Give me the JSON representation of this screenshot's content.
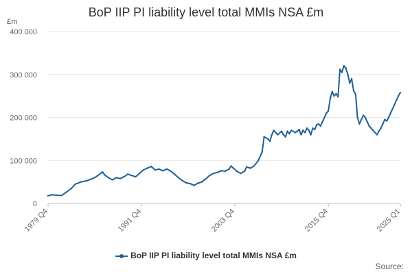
{
  "chart_data": {
    "type": "line",
    "title": "BoP IIP PI liability level total MMIs NSA £m",
    "ylabel": "£m",
    "xlabel": "",
    "ylim": [
      0,
      400000
    ],
    "y_ticks": [
      {
        "value": 0,
        "label": "0"
      },
      {
        "value": 100000,
        "label": "100 000"
      },
      {
        "value": 200000,
        "label": "200 000"
      },
      {
        "value": 300000,
        "label": "300 000"
      },
      {
        "value": 400000,
        "label": "400 000"
      }
    ],
    "x_start": 1979.75,
    "x_end": 2025.0,
    "x_ticks": [
      {
        "value": 1979.75,
        "label": "1979 Q4"
      },
      {
        "value": 1991.75,
        "label": "1991 Q4"
      },
      {
        "value": 2003.75,
        "label": "2003 Q4"
      },
      {
        "value": 2015.75,
        "label": "2015 Q4"
      },
      {
        "value": 2025.0,
        "label": "2025 Q1"
      }
    ],
    "grid": true,
    "series": [
      {
        "name": "BoP IIP PI liability level total MMIs NSA £m",
        "color": "#206095",
        "points": [
          [
            1979.75,
            18000
          ],
          [
            1980.25,
            20000
          ],
          [
            1981.0,
            19000
          ],
          [
            1981.5,
            18500
          ],
          [
            1982.0,
            25000
          ],
          [
            1982.75,
            35000
          ],
          [
            1983.25,
            45000
          ],
          [
            1984.0,
            50000
          ],
          [
            1984.75,
            53000
          ],
          [
            1985.5,
            58000
          ],
          [
            1986.0,
            63000
          ],
          [
            1986.5,
            70000
          ],
          [
            1986.75,
            73000
          ],
          [
            1987.0,
            67000
          ],
          [
            1987.5,
            60000
          ],
          [
            1988.0,
            55000
          ],
          [
            1988.5,
            60000
          ],
          [
            1989.0,
            58000
          ],
          [
            1989.5,
            62000
          ],
          [
            1990.0,
            68000
          ],
          [
            1990.5,
            65000
          ],
          [
            1991.0,
            62000
          ],
          [
            1991.5,
            70000
          ],
          [
            1992.0,
            78000
          ],
          [
            1992.5,
            82000
          ],
          [
            1993.0,
            86000
          ],
          [
            1993.5,
            78000
          ],
          [
            1994.0,
            80000
          ],
          [
            1994.5,
            76000
          ],
          [
            1995.0,
            80000
          ],
          [
            1995.5,
            75000
          ],
          [
            1996.0,
            68000
          ],
          [
            1996.5,
            60000
          ],
          [
            1997.0,
            53000
          ],
          [
            1997.5,
            48000
          ],
          [
            1998.0,
            46000
          ],
          [
            1998.5,
            42000
          ],
          [
            1999.0,
            47000
          ],
          [
            1999.5,
            50000
          ],
          [
            2000.0,
            57000
          ],
          [
            2000.5,
            65000
          ],
          [
            2001.0,
            70000
          ],
          [
            2001.5,
            72000
          ],
          [
            2002.0,
            76000
          ],
          [
            2002.5,
            75000
          ],
          [
            2003.0,
            80000
          ],
          [
            2003.25,
            87000
          ],
          [
            2003.5,
            83000
          ],
          [
            2004.0,
            75000
          ],
          [
            2004.5,
            70000
          ],
          [
            2005.0,
            75000
          ],
          [
            2005.25,
            85000
          ],
          [
            2005.75,
            82000
          ],
          [
            2006.25,
            88000
          ],
          [
            2006.75,
            100000
          ],
          [
            2007.25,
            120000
          ],
          [
            2007.5,
            155000
          ],
          [
            2008.0,
            150000
          ],
          [
            2008.25,
            145000
          ],
          [
            2008.5,
            160000
          ],
          [
            2008.75,
            170000
          ],
          [
            2009.0,
            165000
          ],
          [
            2009.25,
            160000
          ],
          [
            2009.75,
            168000
          ],
          [
            2010.0,
            160000
          ],
          [
            2010.25,
            155000
          ],
          [
            2010.5,
            168000
          ],
          [
            2010.75,
            162000
          ],
          [
            2011.0,
            170000
          ],
          [
            2011.5,
            165000
          ],
          [
            2011.75,
            168000
          ],
          [
            2012.0,
            172000
          ],
          [
            2012.25,
            160000
          ],
          [
            2012.5,
            170000
          ],
          [
            2012.75,
            165000
          ],
          [
            2013.0,
            175000
          ],
          [
            2013.25,
            170000
          ],
          [
            2013.5,
            160000
          ],
          [
            2013.75,
            175000
          ],
          [
            2014.0,
            172000
          ],
          [
            2014.25,
            183000
          ],
          [
            2014.5,
            185000
          ],
          [
            2014.75,
            180000
          ],
          [
            2015.0,
            190000
          ],
          [
            2015.25,
            200000
          ],
          [
            2015.5,
            210000
          ],
          [
            2015.75,
            215000
          ],
          [
            2016.0,
            245000
          ],
          [
            2016.25,
            260000
          ],
          [
            2016.5,
            250000
          ],
          [
            2016.75,
            255000
          ],
          [
            2017.0,
            248000
          ],
          [
            2017.25,
            312000
          ],
          [
            2017.5,
            305000
          ],
          [
            2017.75,
            320000
          ],
          [
            2018.0,
            315000
          ],
          [
            2018.25,
            300000
          ],
          [
            2018.5,
            280000
          ],
          [
            2018.75,
            290000
          ],
          [
            2019.0,
            262000
          ],
          [
            2019.25,
            255000
          ],
          [
            2019.5,
            200000
          ],
          [
            2019.75,
            185000
          ],
          [
            2020.0,
            195000
          ],
          [
            2020.25,
            205000
          ],
          [
            2020.5,
            200000
          ],
          [
            2020.75,
            190000
          ],
          [
            2021.0,
            180000
          ],
          [
            2021.25,
            175000
          ],
          [
            2021.5,
            170000
          ],
          [
            2021.75,
            165000
          ],
          [
            2022.0,
            160000
          ],
          [
            2022.25,
            168000
          ],
          [
            2022.5,
            175000
          ],
          [
            2022.75,
            185000
          ],
          [
            2023.0,
            195000
          ],
          [
            2023.25,
            192000
          ],
          [
            2023.5,
            200000
          ],
          [
            2023.75,
            210000
          ],
          [
            2024.0,
            220000
          ],
          [
            2024.25,
            230000
          ],
          [
            2024.5,
            240000
          ],
          [
            2024.75,
            250000
          ],
          [
            2025.0,
            258000
          ]
        ]
      }
    ]
  },
  "legend": {
    "label": "BoP IIP PI liability level total MMIs NSA £m"
  },
  "source_label": "Source:"
}
